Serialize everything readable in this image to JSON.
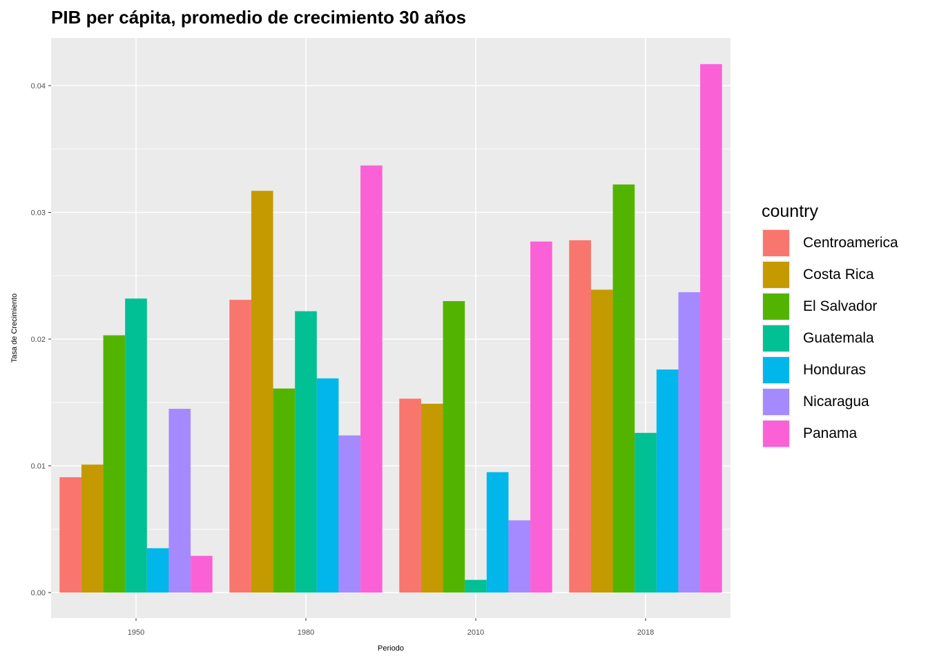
{
  "chart_data": {
    "type": "bar",
    "title": "PIB per cápita, promedio de crecimiento 30 años",
    "xlabel": "Periodo",
    "ylabel": "Tasa de Crecimiento",
    "categories": [
      "1950",
      "1980",
      "2010",
      "2018"
    ],
    "ylim": [
      -0.002,
      0.0445
    ],
    "yticks": [
      "0.00",
      "0.01",
      "0.02",
      "0.03",
      "0.04"
    ],
    "ytick_values": [
      0.0,
      0.01,
      0.02,
      0.03,
      0.04
    ],
    "legend_title": "country",
    "legend_position": "right",
    "grid": true,
    "panel_color": "#ebebeb",
    "series": [
      {
        "name": "Centroamerica",
        "color": "#F8766D",
        "values": [
          0.0091,
          0.0231,
          0.0153,
          0.0278
        ]
      },
      {
        "name": "Costa Rica",
        "color": "#C49A00",
        "values": [
          0.0101,
          0.0317,
          0.0149,
          0.0239
        ]
      },
      {
        "name": "El Salvador",
        "color": "#53B400",
        "values": [
          0.0203,
          0.0161,
          0.023,
          0.0322
        ]
      },
      {
        "name": "Guatemala",
        "color": "#00C094",
        "values": [
          0.0232,
          0.0222,
          0.001,
          0.0126
        ]
      },
      {
        "name": "Honduras",
        "color": "#00B6EB",
        "values": [
          0.0035,
          0.0169,
          0.0095,
          0.0176
        ]
      },
      {
        "name": "Nicaragua",
        "color": "#A58AFF",
        "values": [
          0.0145,
          0.0124,
          0.0057,
          0.0237
        ]
      },
      {
        "name": "Panama",
        "color": "#FB61D7",
        "values": [
          0.0029,
          0.0337,
          0.0277,
          0.0417
        ]
      }
    ]
  }
}
